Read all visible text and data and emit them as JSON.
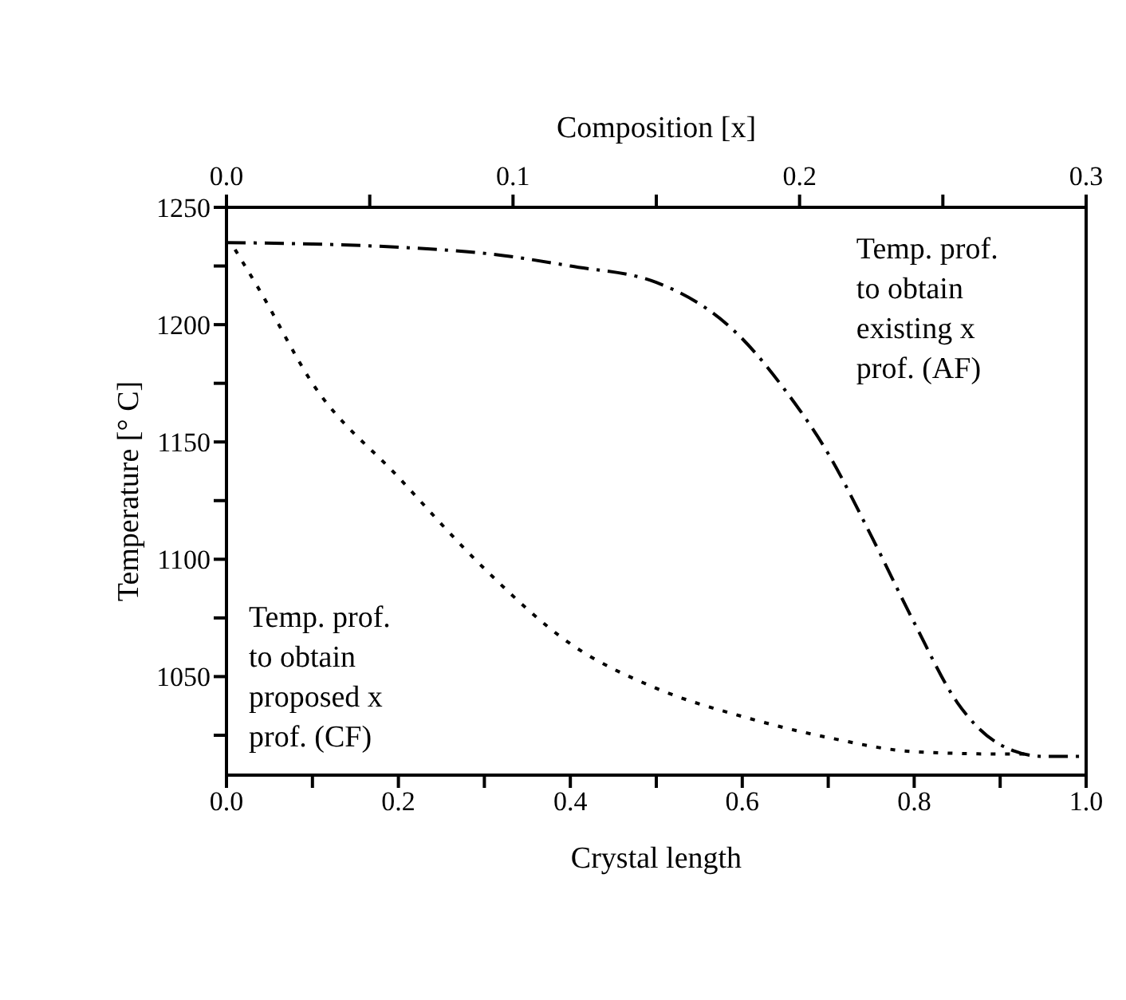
{
  "chart_data": {
    "type": "line",
    "xlabel": "Crystal length",
    "ylabel": "Temperature [° C]",
    "x2label": "Composition [x]",
    "xlim": [
      0,
      1
    ],
    "ylim": [
      1008,
      1250
    ],
    "x2lim": [
      0,
      0.3
    ],
    "xticks": [
      {
        "value": 0,
        "label": "0.0"
      },
      {
        "value": 0.1,
        "label": null
      },
      {
        "value": 0.2,
        "label": "0.2"
      },
      {
        "value": 0.3,
        "label": null
      },
      {
        "value": 0.4,
        "label": "0.4"
      },
      {
        "value": 0.5,
        "label": null
      },
      {
        "value": 0.6,
        "label": "0.6"
      },
      {
        "value": 0.7,
        "label": null
      },
      {
        "value": 0.8,
        "label": "0.8"
      },
      {
        "value": 0.9,
        "label": null
      },
      {
        "value": 1,
        "label": "1.0"
      }
    ],
    "x2ticks": [
      {
        "value": 0,
        "label": "0.0"
      },
      {
        "value": 0.05,
        "label": null
      },
      {
        "value": 0.1,
        "label": "0.1"
      },
      {
        "value": 0.15,
        "label": null
      },
      {
        "value": 0.2,
        "label": "0.2"
      },
      {
        "value": 0.25,
        "label": null
      },
      {
        "value": 0.3,
        "label": "0.3"
      }
    ],
    "yticks": [
      {
        "value": 1025,
        "label": null
      },
      1050,
      {
        "value": 1075,
        "label": null
      },
      1100,
      {
        "value": 1125,
        "label": null
      },
      1150,
      {
        "value": 1175,
        "label": null
      },
      1200,
      {
        "value": 1225,
        "label": null
      },
      1250
    ],
    "grid": false,
    "legend": false,
    "marker": "none",
    "series": [
      {
        "color": "#000000",
        "line_style": "dashed",
        "x": [
          0,
          0.2,
          0.31,
          0.4,
          0.5,
          0.6,
          0.65,
          0.7,
          0.75,
          0.8,
          0.85,
          0.9,
          0.95,
          1
        ],
        "values": [
          1235,
          1233,
          1230,
          1225,
          1218,
          1194,
          1172,
          1145,
          1110,
          1073,
          1039,
          1021,
          1016,
          1016
        ]
      },
      {
        "color": "#000000",
        "line_style": "dotted",
        "x": [
          0.01,
          0.038,
          0.1,
          0.2,
          0.3,
          0.4,
          0.5,
          0.6,
          0.7,
          0.8,
          0.9,
          0.93
        ],
        "values": [
          1232,
          1215,
          1175,
          1135,
          1096,
          1064,
          1045,
          1033,
          1024,
          1018,
          1017,
          1017
        ]
      }
    ],
    "annotations": [
      "Temp. prof. to obtain existing x prof. (AF)",
      "Temp. prof. to obtain proposed x prof. (CF)"
    ]
  }
}
